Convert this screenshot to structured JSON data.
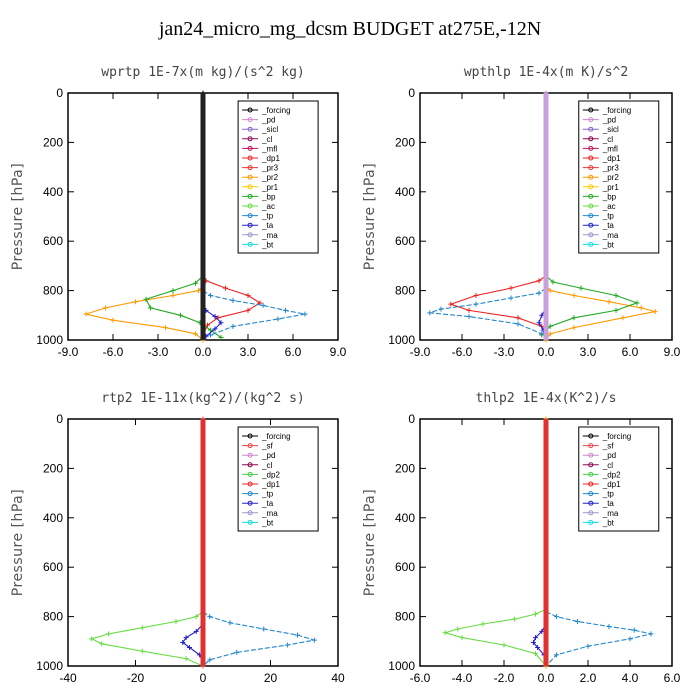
{
  "title": "jan24_micro_mg_dcsm  BUDGET at275E,-12N",
  "colors": {
    "forcing": "#000000",
    "pd": "#cc88cc",
    "sicl": "#8866cc",
    "cl": "#8b0a50",
    "mfl": "#c0105a",
    "dp1": "#ee2222",
    "pr3": "#ee3333",
    "pr2": "#ff9900",
    "pr1": "#ffcc00",
    "bp": "#22aa22",
    "ac": "#66dd44",
    "tp": "#2288cc",
    "ta": "#2222cc",
    "ma": "#9999cc",
    "bt": "#11dddd",
    "sf": "#ee4444",
    "dp2": "#44cc44"
  },
  "chart_data": [
    {
      "type": "line",
      "title": "wprtp  1E-7x(m kg)/(s^2 kg)",
      "ylabel": "Pressure [hPa]",
      "xlim": [
        -9,
        9
      ],
      "ylim": [
        1000,
        0
      ],
      "xticks": [
        "-9.0",
        "-6.0",
        "-3.0",
        "0.0",
        "3.0",
        "6.0",
        "9.0"
      ],
      "yticks": [
        "0",
        "200",
        "400",
        "600",
        "800",
        "1000"
      ],
      "legend": [
        "_forcing",
        "_pd",
        "_sicl",
        "_cl",
        "_mfl",
        "_dp1",
        "_pr3",
        "_pr2",
        "_pr1",
        "_bp",
        "_ac",
        "_tp",
        "_ta",
        "_ma",
        "_bt"
      ],
      "series": [
        {
          "key": "forcing",
          "name": "_forcing",
          "x": [
            0,
            0,
            0,
            0,
            0,
            0,
            0,
            0,
            0,
            0,
            0
          ],
          "y": [
            0,
            100,
            200,
            300,
            400,
            500,
            600,
            700,
            800,
            900,
            1000
          ]
        },
        {
          "key": "dp1",
          "name": "_dp1",
          "x": [
            0,
            0.2,
            1.5,
            3.0,
            3.8,
            3.0,
            1.0,
            0.3,
            0
          ],
          "y": [
            740,
            760,
            790,
            820,
            850,
            880,
            910,
            940,
            980
          ]
        },
        {
          "key": "pr2",
          "name": "_pr2",
          "x": [
            0,
            -0.3,
            -2.0,
            -4.5,
            -6.5,
            -7.8,
            -6.0,
            -2.5,
            -0.5,
            0
          ],
          "y": [
            780,
            800,
            820,
            845,
            870,
            895,
            920,
            950,
            975,
            1000
          ]
        },
        {
          "key": "bp",
          "name": "_bp",
          "x": [
            0,
            -0.5,
            -2.0,
            -3.8,
            -3.5,
            -1.5,
            -0.2,
            0.5,
            1.2
          ],
          "y": [
            740,
            770,
            800,
            835,
            870,
            900,
            930,
            960,
            990
          ]
        },
        {
          "key": "tp",
          "name": "_tp",
          "x": [
            0,
            0.5,
            2.0,
            4.0,
            5.5,
            6.8,
            5.0,
            2.0,
            0.5
          ],
          "y": [
            800,
            820,
            840,
            860,
            880,
            895,
            915,
            945,
            980
          ]
        },
        {
          "key": "ta",
          "name": "_ta",
          "x": [
            0,
            0.2,
            0.8,
            1.2,
            0.8,
            0.2
          ],
          "y": [
            850,
            880,
            905,
            930,
            955,
            985
          ]
        }
      ]
    },
    {
      "type": "line",
      "title": "wpthlp  1E-4x(m K)/s^2",
      "ylabel": "Pressure [hPa]",
      "xlim": [
        -9,
        9
      ],
      "ylim": [
        1000,
        0
      ],
      "xticks": [
        "-9.0",
        "-6.0",
        "-3.0",
        "0.0",
        "3.0",
        "6.0",
        "9.0"
      ],
      "yticks": [
        "0",
        "200",
        "400",
        "600",
        "800",
        "1000"
      ],
      "legend": [
        "_forcing",
        "_pd",
        "_sicl",
        "_cl",
        "_mfl",
        "_dp1",
        "_pr3",
        "_pr2",
        "_pr1",
        "_bp",
        "_ac",
        "_tp",
        "_ta",
        "_ma",
        "_bt"
      ],
      "series": [
        {
          "key": "pd",
          "name": "_pd",
          "x": [
            0,
            0,
            0,
            0,
            0,
            0,
            0,
            0,
            0,
            0,
            0
          ],
          "y": [
            0,
            100,
            200,
            300,
            400,
            500,
            600,
            700,
            800,
            900,
            1000
          ]
        },
        {
          "key": "dp1",
          "name": "_dp1",
          "x": [
            0,
            -0.5,
            -2.5,
            -5.0,
            -6.8,
            -5.5,
            -2.0,
            -0.3,
            0
          ],
          "y": [
            740,
            760,
            790,
            820,
            855,
            880,
            910,
            945,
            980
          ]
        },
        {
          "key": "pr2",
          "name": "_pr2",
          "x": [
            0,
            0.3,
            2.0,
            4.5,
            6.8,
            7.8,
            5.5,
            2.0,
            0.3,
            0
          ],
          "y": [
            780,
            800,
            820,
            845,
            870,
            885,
            910,
            950,
            975,
            1000
          ]
        },
        {
          "key": "bp",
          "name": "_bp",
          "x": [
            0,
            0.5,
            2.5,
            5.0,
            6.5,
            5.0,
            2.0,
            0.3,
            -0.3
          ],
          "y": [
            740,
            765,
            790,
            820,
            850,
            880,
            910,
            945,
            980
          ]
        },
        {
          "key": "tp",
          "name": "_tp",
          "x": [
            0,
            -0.5,
            -2.5,
            -5.0,
            -7.5,
            -8.3,
            -5.5,
            -2.0,
            -0.3
          ],
          "y": [
            790,
            810,
            830,
            855,
            875,
            890,
            905,
            935,
            975
          ]
        },
        {
          "key": "ta",
          "name": "_ta",
          "x": [
            0,
            -0.3,
            -0.5,
            -0.2,
            0
          ],
          "y": [
            870,
            900,
            930,
            960,
            990
          ]
        }
      ]
    },
    {
      "type": "line",
      "title": "rtp2  1E-11x(kg^2)/(kg^2 s)",
      "ylabel": "Pressure [hPa]",
      "xlim": [
        -40,
        40
      ],
      "ylim": [
        1000,
        0
      ],
      "xticks": [
        "-40",
        "-20",
        "0",
        "20",
        "40"
      ],
      "yticks": [
        "0",
        "200",
        "400",
        "600",
        "800",
        "1000"
      ],
      "legend": [
        "_forcing",
        "_sf",
        "_pd",
        "_cl",
        "_dp2",
        "_dp1",
        "_tp",
        "_ta",
        "_ma",
        "_bt"
      ],
      "series": [
        {
          "key": "forcing",
          "name": "_forcing",
          "x": [
            0,
            0,
            0,
            0,
            0,
            0,
            0,
            0,
            0,
            0,
            0
          ],
          "y": [
            0,
            100,
            200,
            300,
            400,
            500,
            600,
            700,
            800,
            900,
            1000
          ]
        },
        {
          "key": "ac",
          "name": "_dp1",
          "x": [
            0,
            -2,
            -8,
            -18,
            -28,
            -33,
            -30,
            -18,
            -5,
            0
          ],
          "y": [
            780,
            800,
            820,
            845,
            870,
            890,
            910,
            940,
            970,
            1000
          ]
        },
        {
          "key": "tp",
          "name": "_tp",
          "x": [
            0,
            2,
            8,
            18,
            28,
            33,
            25,
            10,
            2,
            0
          ],
          "y": [
            780,
            800,
            825,
            850,
            875,
            895,
            915,
            945,
            975,
            1000
          ]
        },
        {
          "key": "ta",
          "name": "_ta",
          "x": [
            0,
            -2,
            -5,
            -6,
            -4,
            -1,
            0
          ],
          "y": [
            830,
            860,
            885,
            905,
            925,
            955,
            985
          ]
        },
        {
          "key": "sf",
          "name": "_sf",
          "x": [
            0,
            0,
            0,
            0,
            0,
            0,
            0,
            0,
            0,
            0,
            0
          ],
          "y": [
            0,
            100,
            200,
            300,
            400,
            500,
            600,
            700,
            800,
            900,
            1000
          ]
        }
      ]
    },
    {
      "type": "line",
      "title": "thlp2  1E-4x(K^2)/s",
      "ylabel": "Pressure [hPa]",
      "xlim": [
        -6,
        6
      ],
      "ylim": [
        1000,
        0
      ],
      "xticks": [
        "-6.0",
        "-4.0",
        "-2.0",
        "0.0",
        "2.0",
        "4.0",
        "6.0"
      ],
      "yticks": [
        "0",
        "200",
        "400",
        "600",
        "800",
        "1000"
      ],
      "legend": [
        "_forcing",
        "_sf",
        "_pd",
        "_cl",
        "_dp2",
        "_dp1",
        "_tp",
        "_ta",
        "_ma",
        "_bt"
      ],
      "series": [
        {
          "key": "forcing",
          "name": "_forcing",
          "x": [
            0,
            0,
            0,
            0,
            0,
            0,
            0,
            0,
            0,
            0,
            0
          ],
          "y": [
            0,
            100,
            200,
            300,
            400,
            500,
            600,
            700,
            800,
            900,
            1000
          ]
        },
        {
          "key": "ac",
          "name": "_dp1",
          "x": [
            0,
            -0.5,
            -1.5,
            -3.0,
            -4.2,
            -4.8,
            -4.0,
            -2.0,
            -0.5,
            0
          ],
          "y": [
            770,
            790,
            810,
            830,
            850,
            865,
            885,
            915,
            950,
            1000
          ]
        },
        {
          "key": "tp",
          "name": "_tp",
          "x": [
            0,
            0.5,
            1.5,
            3.0,
            4.2,
            5.0,
            4.0,
            2.0,
            0.5,
            0
          ],
          "y": [
            780,
            800,
            820,
            840,
            855,
            870,
            890,
            920,
            955,
            1000
          ]
        },
        {
          "key": "ta",
          "name": "_ta",
          "x": [
            0,
            -0.2,
            -0.5,
            -0.6,
            -0.4,
            -0.1,
            0
          ],
          "y": [
            830,
            860,
            885,
            905,
            925,
            955,
            985
          ]
        },
        {
          "key": "pr2",
          "name": "_pd",
          "x": [
            0,
            0,
            0,
            0,
            0,
            0,
            0,
            0,
            0,
            0,
            0
          ],
          "y": [
            0,
            100,
            200,
            300,
            400,
            500,
            600,
            700,
            800,
            900,
            1000
          ]
        }
      ]
    }
  ]
}
